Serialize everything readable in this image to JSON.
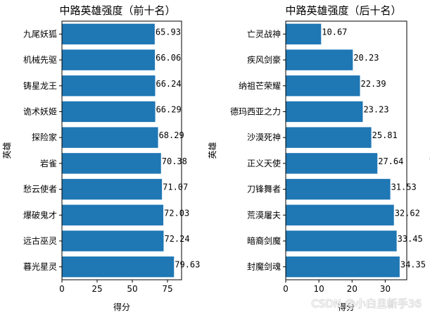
{
  "chart_data": [
    {
      "type": "bar",
      "orientation": "horizontal",
      "title": "中路英雄强度（前十名）",
      "xlabel": "得分",
      "ylabel": "英雄",
      "xlim": [
        0,
        85
      ],
      "xticks": [
        0,
        25,
        50,
        75
      ],
      "categories": [
        "九尾妖狐",
        "机械先驱",
        "铸星龙王",
        "诡术妖姬",
        "探险家",
        "岩雀",
        "愁云使者",
        "爆破鬼才",
        "远古巫灵",
        "暮光星灵"
      ],
      "values": [
        65.93,
        66.06,
        66.24,
        66.29,
        68.29,
        70.38,
        71.07,
        72.03,
        72.24,
        79.63
      ],
      "value_labels": [
        "65.93",
        "66.06",
        "66.24",
        "66.29",
        "68.29",
        "70.38",
        "71.07",
        "72.03",
        "72.24",
        "79.63"
      ],
      "bar_color": "#1f77b4"
    },
    {
      "type": "bar",
      "orientation": "horizontal",
      "title": "中路英雄强度（后十名）",
      "xlabel": "得分",
      "ylabel": "英雄",
      "xlim": [
        0,
        36.5
      ],
      "xticks": [
        0,
        10,
        20,
        30
      ],
      "categories": [
        "亡灵战神",
        "疾风剑豪",
        "纳祖芒荣耀",
        "德玛西亚之力",
        "沙漠死神",
        "正义天使",
        "刀锋舞者",
        "荒漠屠夫",
        "暗裔剑魔",
        "封魔剑魂"
      ],
      "values": [
        10.67,
        20.23,
        22.39,
        23.23,
        25.81,
        27.64,
        31.53,
        32.62,
        33.45,
        34.35
      ],
      "value_labels": [
        "10.67",
        "20.23",
        "22.39",
        "23.23",
        "25.81",
        "27.64",
        "31.53",
        "32.62",
        "33.45",
        "34.35"
      ],
      "bar_color": "#1f77b4"
    }
  ],
  "watermark": "CSDN @小白且新手36"
}
